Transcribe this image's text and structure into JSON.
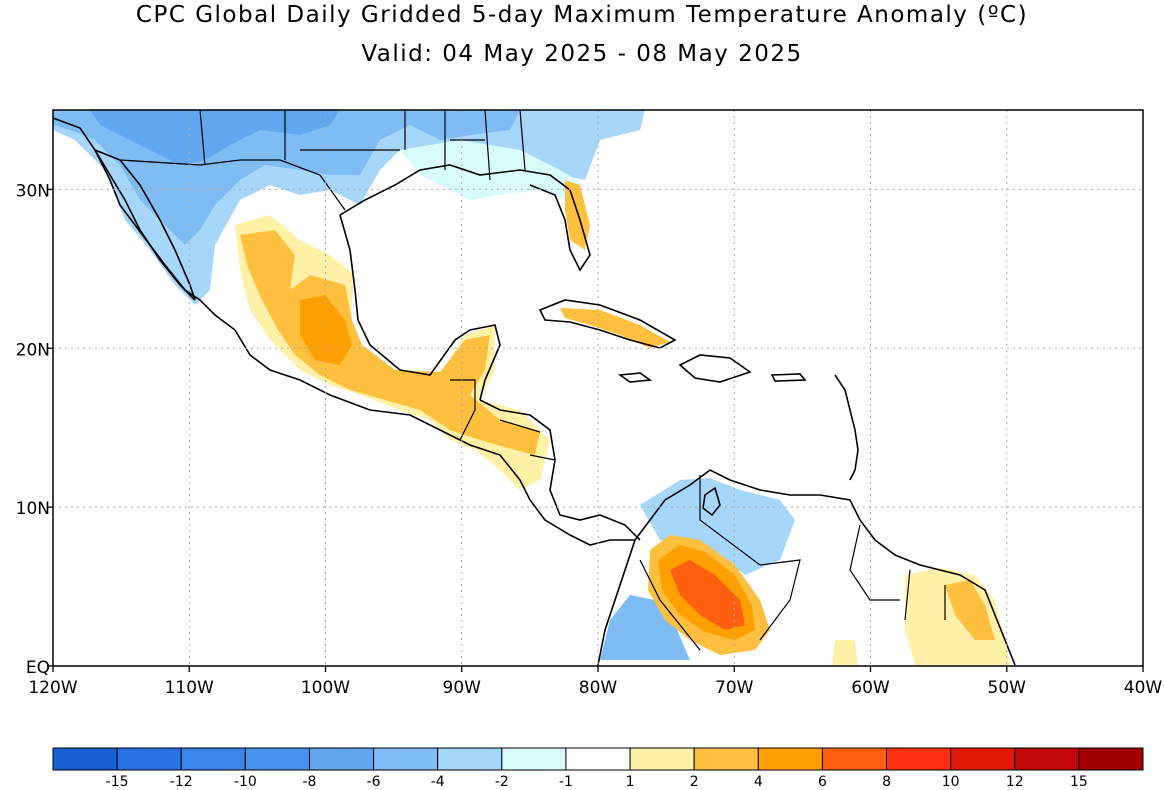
{
  "title": {
    "line1": "CPC Global Daily Gridded 5-day Maximum Temperature Anomaly (ºC)",
    "line2": "Valid: 04 May 2025 - 08 May 2025"
  },
  "map": {
    "lon_range": [
      -120,
      -40
    ],
    "lat_range": [
      0,
      35
    ],
    "lon_ticks": [
      {
        "lon": -120,
        "label": "120W"
      },
      {
        "lon": -110,
        "label": "110W"
      },
      {
        "lon": -100,
        "label": "100W"
      },
      {
        "lon": -90,
        "label": "90W"
      },
      {
        "lon": -80,
        "label": "80W"
      },
      {
        "lon": -70,
        "label": "70W"
      },
      {
        "lon": -60,
        "label": "60W"
      },
      {
        "lon": -50,
        "label": "50W"
      },
      {
        "lon": -40,
        "label": "40W"
      }
    ],
    "lat_ticks": [
      {
        "lat": 0,
        "label": "EQ"
      },
      {
        "lat": 10,
        "label": "10N"
      },
      {
        "lat": 20,
        "label": "20N"
      },
      {
        "lat": 30,
        "label": "30N"
      }
    ],
    "grid": true
  },
  "colorbar": {
    "labels": [
      "-15",
      "-12",
      "-10",
      "-8",
      "-6",
      "-4",
      "-2",
      "-1",
      "1",
      "2",
      "4",
      "6",
      "8",
      "10",
      "12",
      "15"
    ],
    "colors": [
      "#1a5fd1",
      "#2a72e4",
      "#3a84ea",
      "#4a94ee",
      "#62a6f0",
      "#80bcf4",
      "#a6d6fa",
      "#d8fbfb",
      "#ffffff",
      "#fff2a8",
      "#ffc040",
      "#ffa000",
      "#ff6010",
      "#ff3010",
      "#e01808",
      "#c00808",
      "#a00000"
    ]
  },
  "anomaly_regions": [
    {
      "name": "southwest-us-cold",
      "color": "#80bcf4"
    },
    {
      "name": "texas-cold",
      "color": "#a6d6fa"
    },
    {
      "name": "mexico-plateau-warm",
      "color": "#ffc040"
    },
    {
      "name": "colombia-venezuela-hot",
      "color": "#ff6010"
    },
    {
      "name": "guianas-warm",
      "color": "#fff2a8"
    }
  ]
}
